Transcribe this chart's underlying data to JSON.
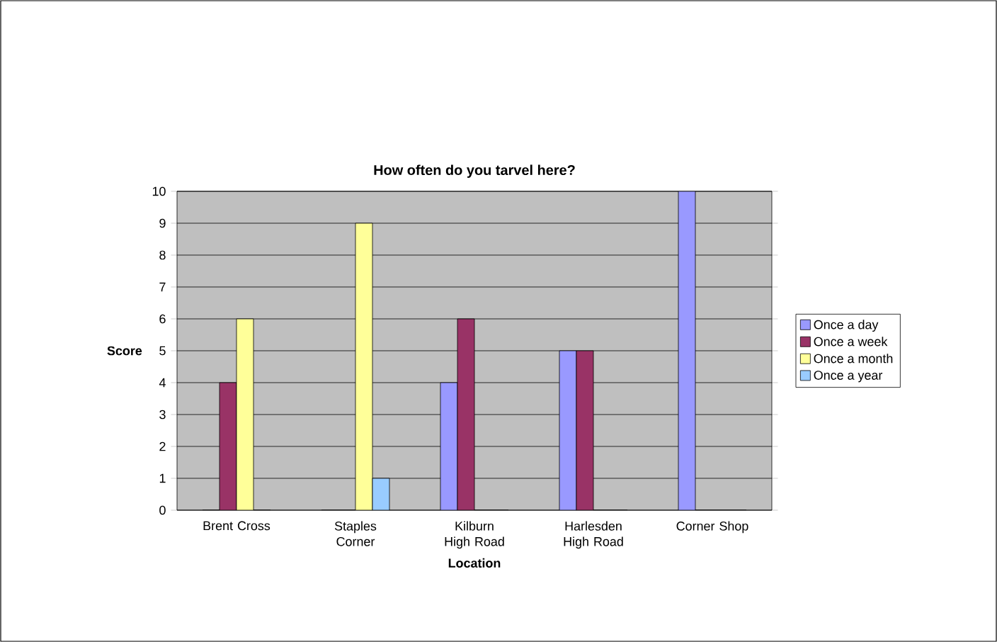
{
  "chart_data": {
    "type": "bar",
    "title": "How often do you tarvel here?",
    "xlabel": "Location",
    "ylabel": "Score",
    "categories": [
      "Brent Cross",
      "Staples Corner",
      "Kilburn High Road",
      "Harlesden High Road",
      "Corner Shop"
    ],
    "series": [
      {
        "name": "Once a day",
        "color": "#9999ff",
        "values": [
          0,
          0,
          4,
          5,
          10
        ]
      },
      {
        "name": "Once a week",
        "color": "#993366",
        "values": [
          4,
          0,
          6,
          5,
          0
        ]
      },
      {
        "name": "Once a month",
        "color": "#ffff99",
        "values": [
          6,
          9,
          0,
          0,
          0
        ]
      },
      {
        "name": "Once a year",
        "color": "#99ccff",
        "values": [
          0,
          1,
          0,
          0,
          0
        ]
      }
    ],
    "ylim": [
      0,
      10
    ],
    "yticks": [
      0,
      1,
      2,
      3,
      4,
      5,
      6,
      7,
      8,
      9,
      10
    ],
    "grid": "y",
    "legend": "right"
  }
}
